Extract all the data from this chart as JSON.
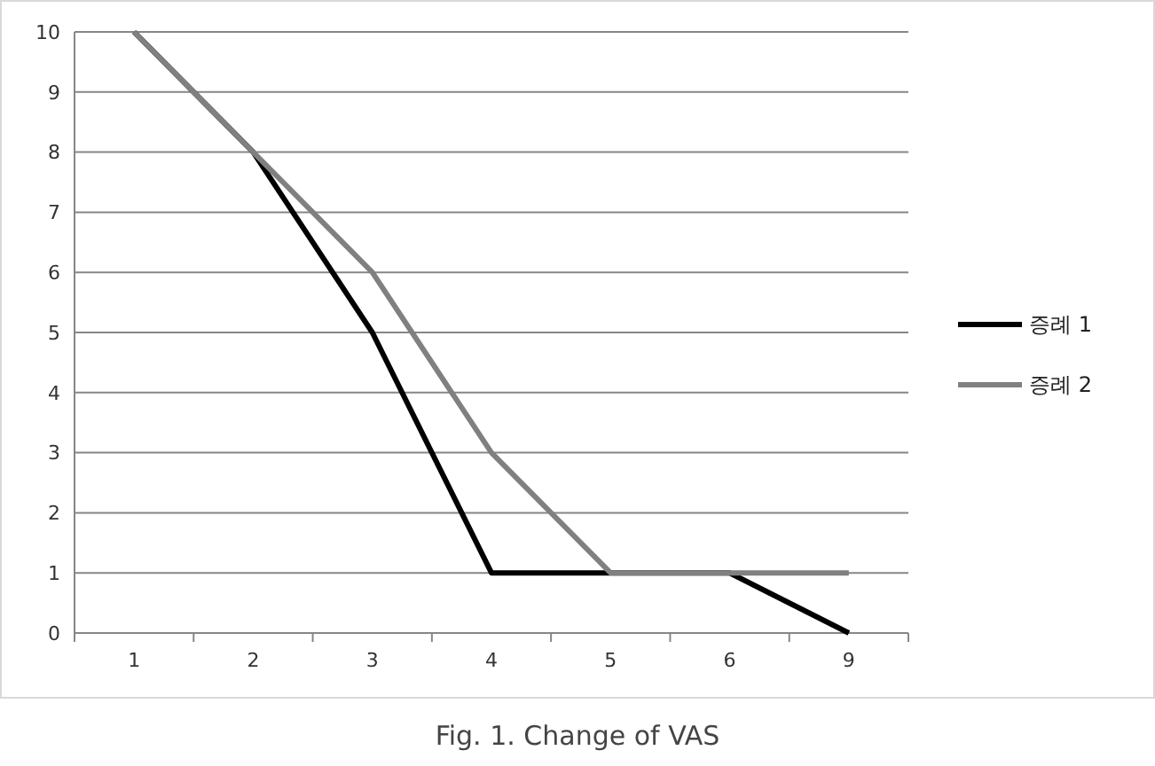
{
  "chart_data": {
    "type": "line",
    "title": "Fig. 1. Change of VAS",
    "categories": [
      "1",
      "2",
      "3",
      "4",
      "5",
      "6",
      "9"
    ],
    "series": [
      {
        "name": "증례 1",
        "color": "#000000",
        "values": [
          10,
          8,
          5,
          1,
          1,
          1,
          0
        ]
      },
      {
        "name": "증례 2",
        "color": "#808080",
        "values": [
          10,
          8,
          6,
          3,
          1,
          1,
          1
        ]
      }
    ],
    "ylim": [
      0,
      10
    ],
    "yticks": [
      0,
      1,
      2,
      3,
      4,
      5,
      6,
      7,
      8,
      9,
      10
    ],
    "grid": "y",
    "legend": "right",
    "marker": "none",
    "line_style": "solid"
  }
}
